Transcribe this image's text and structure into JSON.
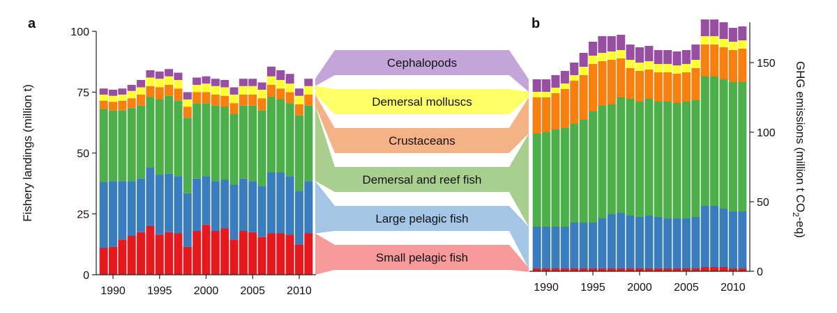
{
  "chart_data": [
    {
      "type": "bar",
      "stacked": true,
      "panel": "a",
      "title": "",
      "xlabel": "",
      "ylabel": "Fishery landings (million t)",
      "ylim": [
        0,
        100
      ],
      "yticks": [
        0,
        25,
        50,
        75,
        100
      ],
      "xticks": [
        1990,
        1995,
        2000,
        2005,
        2010
      ],
      "categories": [
        1989,
        1990,
        1991,
        1992,
        1993,
        1994,
        1995,
        1996,
        1997,
        1998,
        1999,
        2000,
        2001,
        2002,
        2003,
        2004,
        2005,
        2006,
        2007,
        2008,
        2009,
        2010,
        2011
      ],
      "series": [
        {
          "name": "Small pelagic fish",
          "color": "#e41a1c",
          "values": [
            11,
            11.5,
            14.5,
            16,
            17.5,
            20,
            16.5,
            17.5,
            17,
            11.5,
            18,
            20.5,
            18,
            19,
            14.5,
            18,
            17.5,
            15.5,
            17,
            17,
            16.5,
            12.5,
            17
          ]
        },
        {
          "name": "Large pelagic fish",
          "color": "#3a7dbf",
          "values": [
            27,
            27,
            24,
            22.5,
            22,
            24,
            24.5,
            24,
            23.5,
            22,
            21.5,
            20,
            20.5,
            20,
            22.5,
            21.5,
            21,
            21,
            25,
            25,
            24,
            22,
            21.5
          ]
        },
        {
          "name": "Demersal and reef fish",
          "color": "#4daf4a",
          "values": [
            30,
            29,
            29,
            30,
            30,
            29,
            31,
            32,
            31,
            31,
            31,
            30,
            31,
            30,
            29,
            30,
            31,
            31,
            31,
            30,
            30,
            31,
            31
          ]
        },
        {
          "name": "Crustaceans",
          "color": "#f97f0f",
          "values": [
            3.5,
            3.5,
            4,
            4,
            4.5,
            4.5,
            5,
            4.5,
            5,
            4.5,
            4.5,
            4.5,
            4.5,
            4.5,
            4.5,
            4.5,
            4.5,
            5,
            5,
            4.5,
            4.5,
            4.5,
            4.5
          ]
        },
        {
          "name": "Demersal molluscs",
          "color": "#ffff33",
          "values": [
            2.5,
            2.5,
            2.5,
            3,
            3,
            3.5,
            3.5,
            3.5,
            3.5,
            3,
            3,
            3.5,
            3.5,
            3.5,
            3.5,
            3.5,
            3.5,
            3.5,
            3.5,
            3.5,
            3.5,
            3.5,
            3.5
          ]
        },
        {
          "name": "Cephalopods",
          "color": "#984ea3",
          "values": [
            2.5,
            2.5,
            2.5,
            2.5,
            3,
            3,
            3,
            3,
            3,
            3,
            3,
            3,
            3,
            3,
            3,
            3,
            3,
            3,
            4,
            4,
            4,
            3,
            3
          ]
        }
      ]
    },
    {
      "type": "bar",
      "stacked": true,
      "panel": "b",
      "title": "",
      "xlabel": "",
      "ylabel": "GHG emissions (million t CO2-eq)",
      "ylabel_parts": {
        "before": "GHG emissions (million t CO",
        "sub": "2",
        "after": "-eq)"
      },
      "ylim": [
        0,
        175
      ],
      "yticks": [
        0,
        50,
        100,
        150
      ],
      "xticks": [
        1990,
        1995,
        2000,
        2005,
        2010
      ],
      "categories": [
        1989,
        1990,
        1991,
        1992,
        1993,
        1994,
        1995,
        1996,
        1997,
        1998,
        1999,
        2000,
        2001,
        2002,
        2003,
        2004,
        2005,
        2006,
        2007,
        2008,
        2009,
        2010,
        2011
      ],
      "series": [
        {
          "name": "Small pelagic fish",
          "color": "#e41a1c",
          "values": [
            2,
            2,
            2,
            2,
            2,
            2,
            2,
            2,
            2,
            2,
            2,
            2,
            2,
            2,
            2,
            2,
            2,
            2,
            3,
            3,
            3,
            2,
            2
          ]
        },
        {
          "name": "Large pelagic fish",
          "color": "#3a7dbf",
          "values": [
            30,
            30,
            30,
            30,
            33,
            33,
            33,
            36,
            39,
            40,
            38,
            37,
            38,
            37,
            36,
            36,
            36,
            37,
            44,
            44,
            42,
            41,
            41
          ]
        },
        {
          "name": "Demersal and reef fish",
          "color": "#4daf4a",
          "values": [
            67,
            68,
            70,
            71,
            71,
            74,
            80,
            81,
            79,
            83,
            84,
            83,
            84,
            83,
            84,
            83,
            84,
            84,
            93,
            93,
            93,
            93,
            93
          ]
        },
        {
          "name": "Crustaceans",
          "color": "#f97f0f",
          "values": [
            26,
            25,
            26,
            28,
            31,
            32,
            34,
            32,
            32,
            28,
            22,
            22,
            21,
            21,
            21,
            21,
            21,
            23,
            23,
            23,
            23,
            23,
            24
          ]
        },
        {
          "name": "Demersal molluscs",
          "color": "#ffff33",
          "values": [
            4,
            4,
            4,
            4,
            4,
            6,
            6,
            6,
            6,
            6,
            6,
            6,
            6,
            6,
            6,
            6,
            6,
            6,
            6,
            6,
            6,
            6,
            6
          ]
        },
        {
          "name": "Cephalopods",
          "color": "#984ea3",
          "values": [
            9,
            9,
            9,
            9,
            9,
            10,
            10,
            12,
            11,
            11,
            11,
            11,
            11,
            10,
            10,
            10,
            10,
            11,
            12,
            12,
            12,
            10,
            10
          ]
        }
      ]
    }
  ],
  "panel_labels": {
    "a": "a",
    "b": "b"
  },
  "legend_flows": [
    {
      "label": "Cephalopods",
      "fill": "#c3a5d9"
    },
    {
      "label": "Demersal molluscs",
      "fill": "#ffff66"
    },
    {
      "label": "Crustaceans",
      "fill": "#f6b287"
    },
    {
      "label": "Demersal and reef fish",
      "fill": "#a9cf8f"
    },
    {
      "label": "Large pelagic fish",
      "fill": "#a3c5e6"
    },
    {
      "label": "Small pelagic fish",
      "fill": "#f79a9c"
    }
  ]
}
